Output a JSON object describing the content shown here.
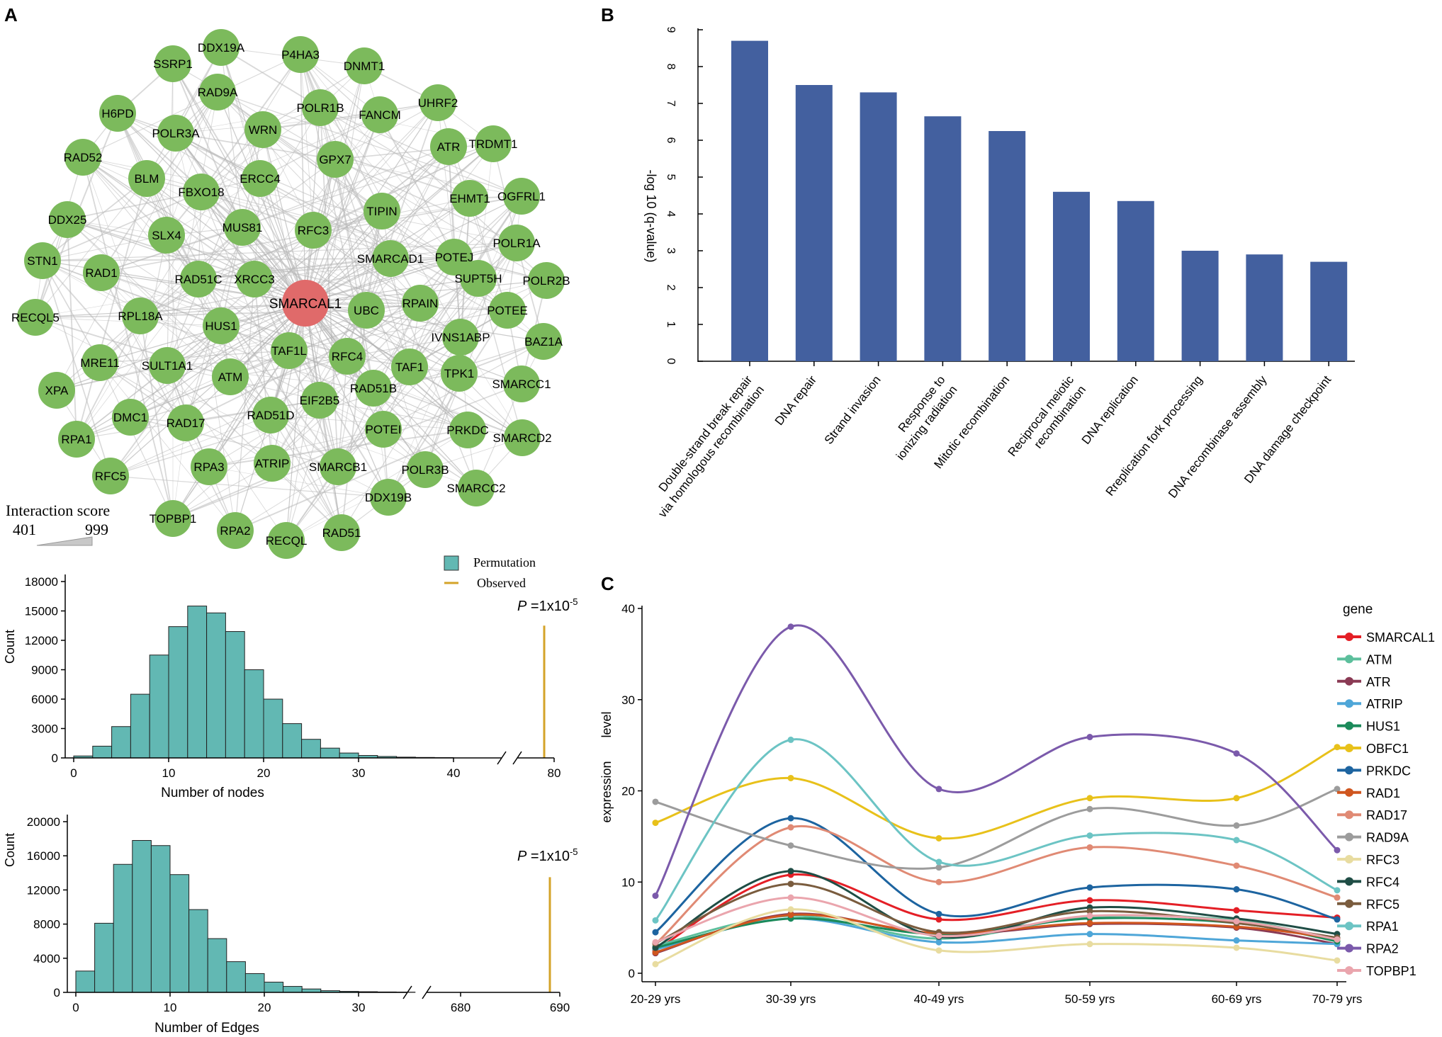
{
  "panel_labels": {
    "a": "A",
    "b": "B",
    "c": "C"
  },
  "network": {
    "center_node": "SMARCAL1",
    "nodes": [
      "DDX19A",
      "P4HA3",
      "SSRP1",
      "DNMT1",
      "RAD9A",
      "H6PD",
      "POLR1B",
      "FANCM",
      "UHRF2",
      "POLR3A",
      "WRN",
      "ATR",
      "TRDMT1",
      "RAD52",
      "GPX7",
      "BLM",
      "FBXO18",
      "ERCC4",
      "EHMT1",
      "OGFRL1",
      "DDX25",
      "TIPIN",
      "SLX4",
      "MUS81",
      "RFC3",
      "POLR1A",
      "STN1",
      "POTEJ",
      "SMARCAD1",
      "RAD1",
      "RAD51C",
      "XRCC3",
      "SUPT5H",
      "POLR2B",
      "RECQL5",
      "RPAIN",
      "UBC",
      "POTEE",
      "RPL18A",
      "HUS1",
      "IVNS1ABP",
      "BAZ1A",
      "TAF1L",
      "RFC4",
      "MRE11",
      "SULT1A1",
      "TAF1",
      "TPK1",
      "XPA",
      "ATM",
      "SMARCC1",
      "EIF2B5",
      "RAD51B",
      "DMC1",
      "RAD51D",
      "RPA1",
      "RAD17",
      "POTEI",
      "PRKDC",
      "SMARCD2",
      "ATRIP",
      "RFC5",
      "RPA3",
      "SMARCB1",
      "POLR3B",
      "DDX19B",
      "SMARCC2",
      "TOPBP1",
      "RPA2",
      "RECQL",
      "RAD51"
    ],
    "legend_title": "Interaction  score",
    "legend_min": "401",
    "legend_max": "999"
  },
  "chart_data": [
    {
      "id": "permutation-nodes",
      "type": "bar",
      "ylabel": "Count",
      "xlabel": "Number of nodes",
      "legend": [
        "Permutation",
        "Observed"
      ],
      "legend_position": "top-right",
      "p_value": {
        "italic": "P",
        "rest": " =1x10",
        "exp": "-5"
      },
      "yticks": [
        "0",
        "3000",
        "6000",
        "9000",
        "12000",
        "15000",
        "18000"
      ],
      "ylim": [
        0,
        18000
      ],
      "xticks": [
        "0",
        "10",
        "20",
        "30",
        "40",
        "80"
      ],
      "bin_width": 2,
      "bins": [
        {
          "x": 2,
          "y": 200
        },
        {
          "x": 4,
          "y": 1200
        },
        {
          "x": 6,
          "y": 3200
        },
        {
          "x": 8,
          "y": 6500
        },
        {
          "x": 10,
          "y": 10500
        },
        {
          "x": 12,
          "y": 13400
        },
        {
          "x": 14,
          "y": 15500
        },
        {
          "x": 16,
          "y": 14800
        },
        {
          "x": 18,
          "y": 12900
        },
        {
          "x": 20,
          "y": 9000
        },
        {
          "x": 22,
          "y": 6000
        },
        {
          "x": 24,
          "y": 3500
        },
        {
          "x": 26,
          "y": 1900
        },
        {
          "x": 28,
          "y": 1000
        },
        {
          "x": 30,
          "y": 500
        },
        {
          "x": 32,
          "y": 250
        },
        {
          "x": 34,
          "y": 150
        },
        {
          "x": 36,
          "y": 80
        },
        {
          "x": 38,
          "y": 50
        },
        {
          "x": 40,
          "y": 30
        }
      ],
      "observed": 79,
      "observed_height": 13500
    },
    {
      "id": "permutation-edges",
      "type": "bar",
      "ylabel": "Count",
      "xlabel": "Number of Edges",
      "p_value": {
        "italic": "P",
        "rest": " =1x10",
        "exp": "-5"
      },
      "yticks": [
        "0",
        "4000",
        "8000",
        "12000",
        "16000",
        "20000"
      ],
      "ylim": [
        0,
        20000
      ],
      "xticks": [
        "0",
        "10",
        "20",
        "30",
        "680",
        "690"
      ],
      "bin_width": 2,
      "bins": [
        {
          "x": 2,
          "y": 2500
        },
        {
          "x": 4,
          "y": 8100
        },
        {
          "x": 6,
          "y": 15000
        },
        {
          "x": 8,
          "y": 17800
        },
        {
          "x": 10,
          "y": 17200
        },
        {
          "x": 12,
          "y": 13800
        },
        {
          "x": 14,
          "y": 9700
        },
        {
          "x": 16,
          "y": 6300
        },
        {
          "x": 18,
          "y": 3600
        },
        {
          "x": 20,
          "y": 2200
        },
        {
          "x": 22,
          "y": 1200
        },
        {
          "x": 24,
          "y": 700
        },
        {
          "x": 26,
          "y": 400
        },
        {
          "x": 28,
          "y": 200
        },
        {
          "x": 30,
          "y": 120
        },
        {
          "x": 32,
          "y": 80
        },
        {
          "x": 34,
          "y": 50
        },
        {
          "x": 36,
          "y": 30
        }
      ],
      "observed": 689,
      "observed_height": 13500
    },
    {
      "id": "go-enrichment",
      "type": "bar",
      "ylabel": "-log  10  (q-value)",
      "ylim": [
        0,
        9
      ],
      "yticks": [
        "0",
        "1",
        "2",
        "3",
        "4",
        "5",
        "6",
        "7",
        "8",
        "9"
      ],
      "categories": [
        [
          "Double-strand break repair",
          "via homologous recombination"
        ],
        [
          "DNA repair"
        ],
        [
          "Strand invasion"
        ],
        [
          "Response to",
          "ionizing radiation"
        ],
        [
          "Mitotic recombination"
        ],
        [
          "Reciprocal meiotic",
          "recombination"
        ],
        [
          "DNA replication"
        ],
        [
          "Rreplication fork processing"
        ],
        [
          "DNA recombinase assembly"
        ],
        [
          "DNA damage checkpoint"
        ]
      ],
      "values": [
        8.7,
        7.5,
        7.3,
        6.65,
        6.25,
        4.6,
        4.35,
        3.0,
        2.9,
        2.7
      ],
      "bar_color": "#43609f"
    },
    {
      "id": "expression-by-age",
      "type": "line",
      "ylabel_words": [
        "level",
        "expression"
      ],
      "legend_title": "gene",
      "legend_position": "right",
      "ylim": [
        0,
        40
      ],
      "yticks": [
        "0",
        "10",
        "20",
        "30",
        "40"
      ],
      "categories": [
        "20-29 yrs",
        "30-39 yrs",
        "40-49 yrs",
        "50-59 yrs",
        "60-69 yrs",
        "70-79 yrs"
      ],
      "series": [
        {
          "name": "SMARCAL1",
          "color": "#e41f26",
          "values": [
            2.5,
            10.8,
            5.9,
            8.0,
            6.9,
            6.1
          ]
        },
        {
          "name": "ATM",
          "color": "#5cbf9c",
          "values": [
            3.0,
            6.3,
            3.8,
            6.2,
            5.8,
            3.6
          ]
        },
        {
          "name": "ATR",
          "color": "#8a3a54",
          "values": [
            2.2,
            6.5,
            4.3,
            5.4,
            5.0,
            3.2
          ]
        },
        {
          "name": "ATRIP",
          "color": "#4ea6d8",
          "values": [
            2.6,
            6.0,
            3.4,
            4.3,
            3.6,
            3.2
          ]
        },
        {
          "name": "HUS1",
          "color": "#1b8a5a",
          "values": [
            2.8,
            6.0,
            4.3,
            6.0,
            5.5,
            3.5
          ]
        },
        {
          "name": "OBFC1",
          "color": "#e8c11a",
          "values": [
            16.5,
            21.4,
            14.8,
            19.2,
            19.2,
            24.8
          ]
        },
        {
          "name": "PRKDC",
          "color": "#1d64a0",
          "values": [
            4.5,
            17.0,
            6.5,
            9.4,
            9.2,
            5.9
          ]
        },
        {
          "name": "RAD1",
          "color": "#d0561f",
          "values": [
            2.3,
            6.4,
            4.4,
            5.5,
            5.1,
            3.8
          ]
        },
        {
          "name": "RAD17",
          "color": "#e08a74",
          "values": [
            3.2,
            16.0,
            10.0,
            13.8,
            11.8,
            8.3
          ]
        },
        {
          "name": "RAD9A",
          "color": "#9c9c9c",
          "values": [
            18.8,
            14.0,
            11.6,
            18.0,
            16.2,
            20.2
          ]
        },
        {
          "name": "RFC3",
          "color": "#e8dca0",
          "values": [
            1.0,
            7.0,
            2.5,
            3.2,
            2.8,
            1.4
          ]
        },
        {
          "name": "RFC4",
          "color": "#1f4d45",
          "values": [
            2.8,
            11.2,
            4.0,
            7.2,
            6.0,
            4.3
          ]
        },
        {
          "name": "RFC5",
          "color": "#7a5c3e",
          "values": [
            3.3,
            9.8,
            4.5,
            6.8,
            5.5,
            3.9
          ]
        },
        {
          "name": "RPA1",
          "color": "#6cc4c4",
          "values": [
            5.8,
            25.6,
            12.2,
            15.1,
            14.6,
            9.1
          ]
        },
        {
          "name": "RPA2",
          "color": "#7b5aab",
          "values": [
            8.5,
            38.0,
            20.2,
            25.9,
            24.1,
            13.5
          ]
        },
        {
          "name": "TOPBP1",
          "color": "#eaa5ad",
          "values": [
            3.4,
            8.3,
            4.1,
            6.3,
            5.7,
            3.7
          ]
        }
      ]
    }
  ],
  "colors": {
    "node": "#7cba5c",
    "center": "#e06a6a",
    "hist": "#62b8b3",
    "observed": "#d4a329",
    "edges": "#b5b5b5"
  }
}
